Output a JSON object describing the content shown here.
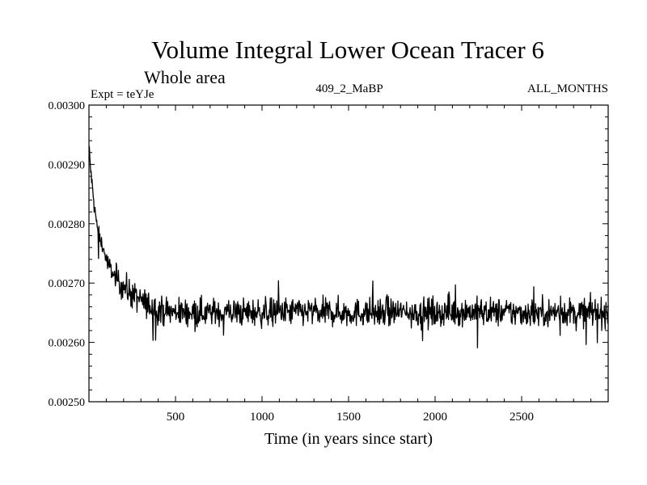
{
  "chart_data": {
    "type": "line",
    "title": "Volume Integral Lower Ocean Tracer 6",
    "subtitle": "Whole area",
    "experiment_label": "Expt = teYJe",
    "run_label": "409_2_MaBP",
    "period_label": "ALL_MONTHS",
    "xlabel": "Time (in years since start)",
    "ylabel": "",
    "xlim": [
      0,
      3000
    ],
    "ylim": [
      0.0025,
      0.003
    ],
    "x_ticks": [
      500,
      1000,
      1500,
      2000,
      2500
    ],
    "x_tick_labels": [
      "500",
      "1000",
      "1500",
      "2000",
      "2500"
    ],
    "y_ticks": [
      0.0025,
      0.0026,
      0.0027,
      0.0028,
      0.0029,
      0.003
    ],
    "y_tick_labels": [
      "0.00250",
      "0.00260",
      "0.00270",
      "0.00280",
      "0.00290",
      "0.00300"
    ],
    "grid": false,
    "series": [
      {
        "name": "Lower Ocean Tracer 6",
        "x": [
          0,
          10,
          20,
          30,
          40,
          50,
          60,
          70,
          80,
          90,
          100,
          125,
          150,
          175,
          200,
          250,
          300,
          350,
          400,
          500,
          600,
          700,
          800,
          1000,
          1200,
          1500,
          1800,
          2000,
          2200,
          2500,
          2800,
          3000
        ],
        "values": [
          0.00293,
          0.00289,
          0.00286,
          0.00283,
          0.00281,
          0.00279,
          0.00278,
          0.00277,
          0.00276,
          0.00275,
          0.00274,
          0.002725,
          0.00271,
          0.0027,
          0.002695,
          0.00268,
          0.00267,
          0.002662,
          0.002655,
          0.00265,
          0.002652,
          0.00265,
          0.002651,
          0.00265,
          0.002652,
          0.00265,
          0.002651,
          0.00265,
          0.002652,
          0.00265,
          0.002651,
          0.00265
        ],
        "noise_amplitude": 4e-05,
        "color": "#000000"
      }
    ]
  }
}
